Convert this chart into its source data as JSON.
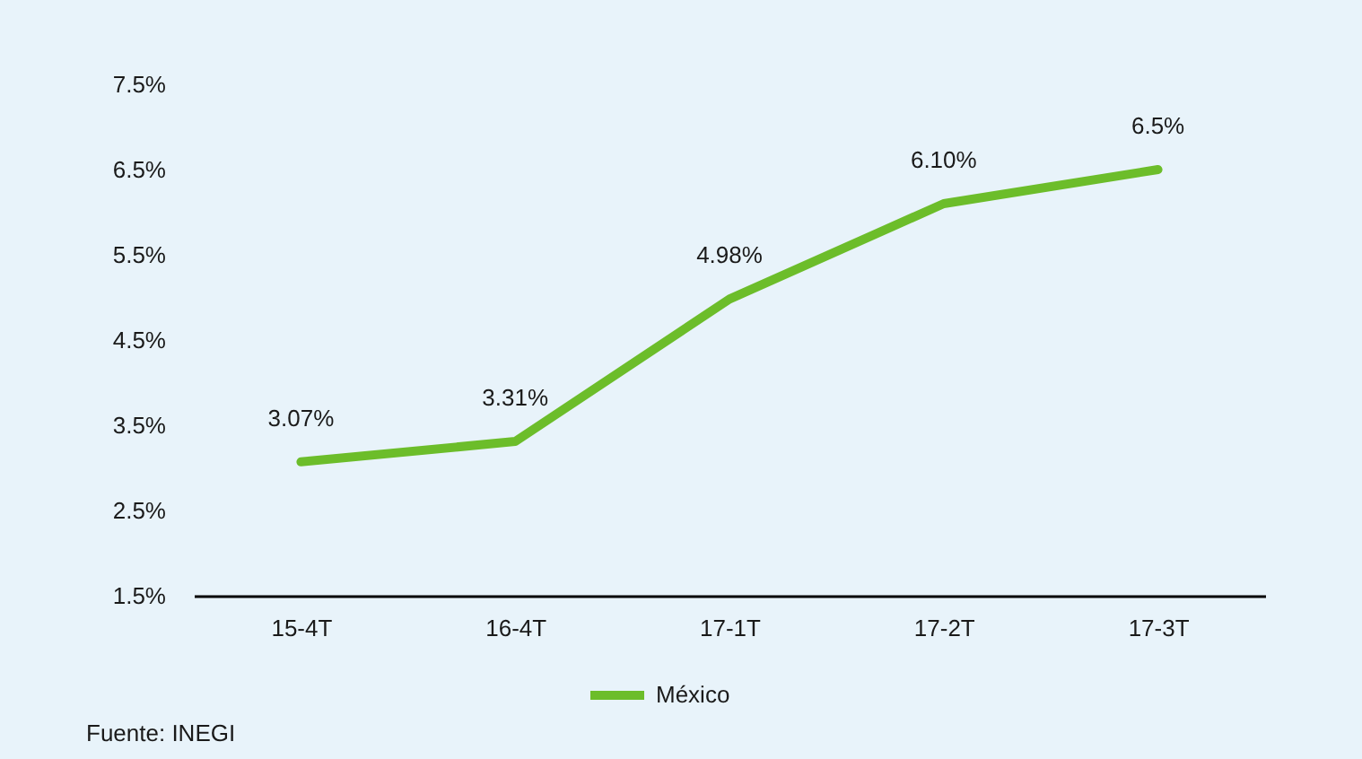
{
  "chart_data": {
    "type": "line",
    "categories": [
      "15-4T",
      "16-4T",
      "17-1T",
      "17-2T",
      "17-3T"
    ],
    "series": [
      {
        "name": "México",
        "color": "#6cbd2a",
        "values": [
          3.07,
          3.31,
          4.98,
          6.1,
          6.5
        ],
        "value_labels": [
          "3.07%",
          "3.31%",
          "4.98%",
          "6.10%",
          "6.5%"
        ]
      }
    ],
    "ylim": [
      1.5,
      7.5
    ],
    "yticks": [
      {
        "value": 1.5,
        "label": "1.5%"
      },
      {
        "value": 2.5,
        "label": "2.5%"
      },
      {
        "value": 3.5,
        "label": "3.5%"
      },
      {
        "value": 4.5,
        "label": "4.5%"
      },
      {
        "value": 5.5,
        "label": "5.5%"
      },
      {
        "value": 6.5,
        "label": "6.5%"
      },
      {
        "value": 7.5,
        "label": "7.5%"
      }
    ],
    "grid": false,
    "legend": "bottom",
    "marker": "none",
    "line_style": "solid",
    "annotations": [
      "Fuente: INEGI"
    ]
  }
}
